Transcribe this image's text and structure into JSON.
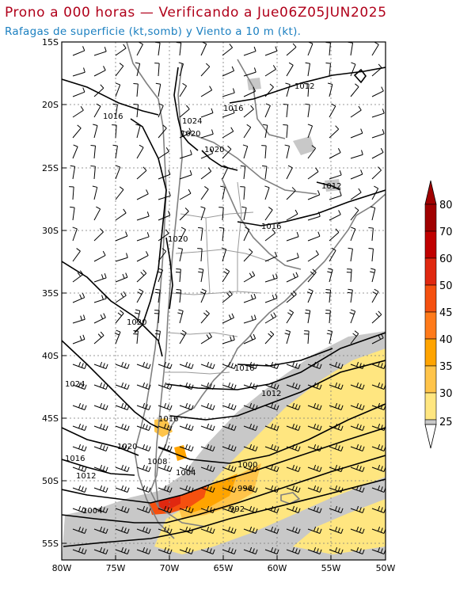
{
  "header": {
    "title": "Prono a 000 horas — Verificando a Jue06Z05JUN2025",
    "subtitle": "Rafagas de superficie (kt,somb) y Viento a 10 m (kt).",
    "title_color": "#b0001a",
    "subtitle_color": "#1a7fc0"
  },
  "axes": {
    "lat_ticks": [
      "15S",
      "20S",
      "25S",
      "30S",
      "35S",
      "40S",
      "45S",
      "50S",
      "55S"
    ],
    "lon_ticks": [
      "80W",
      "75W",
      "70W",
      "65W",
      "60W",
      "55W",
      "50W"
    ]
  },
  "colorbar": {
    "levels": [
      "25",
      "30",
      "35",
      "40",
      "45",
      "50",
      "60",
      "70",
      "80"
    ],
    "colors": [
      "#c8c8c8",
      "#ffe680",
      "#ffc44a",
      "#ffa400",
      "#ff7a1a",
      "#f5500f",
      "#e02810",
      "#c00000",
      "#a00000"
    ]
  },
  "isobars": [
    {
      "label": "1012"
    },
    {
      "label": "1016"
    },
    {
      "label": "1024"
    },
    {
      "label": "1020"
    },
    {
      "label": "1020"
    },
    {
      "label": "1012"
    },
    {
      "label": "1016"
    },
    {
      "label": "1020"
    },
    {
      "label": "1020"
    },
    {
      "label": "1016"
    },
    {
      "label": "1012"
    },
    {
      "label": "1024"
    },
    {
      "label": "1016"
    },
    {
      "label": "1020"
    },
    {
      "label": "1016"
    },
    {
      "label": "1008"
    },
    {
      "label": "1004"
    },
    {
      "label": "1000"
    },
    {
      "label": "1012"
    },
    {
      "label": "996"
    },
    {
      "label": "992"
    },
    {
      "label": "1004"
    }
  ]
}
